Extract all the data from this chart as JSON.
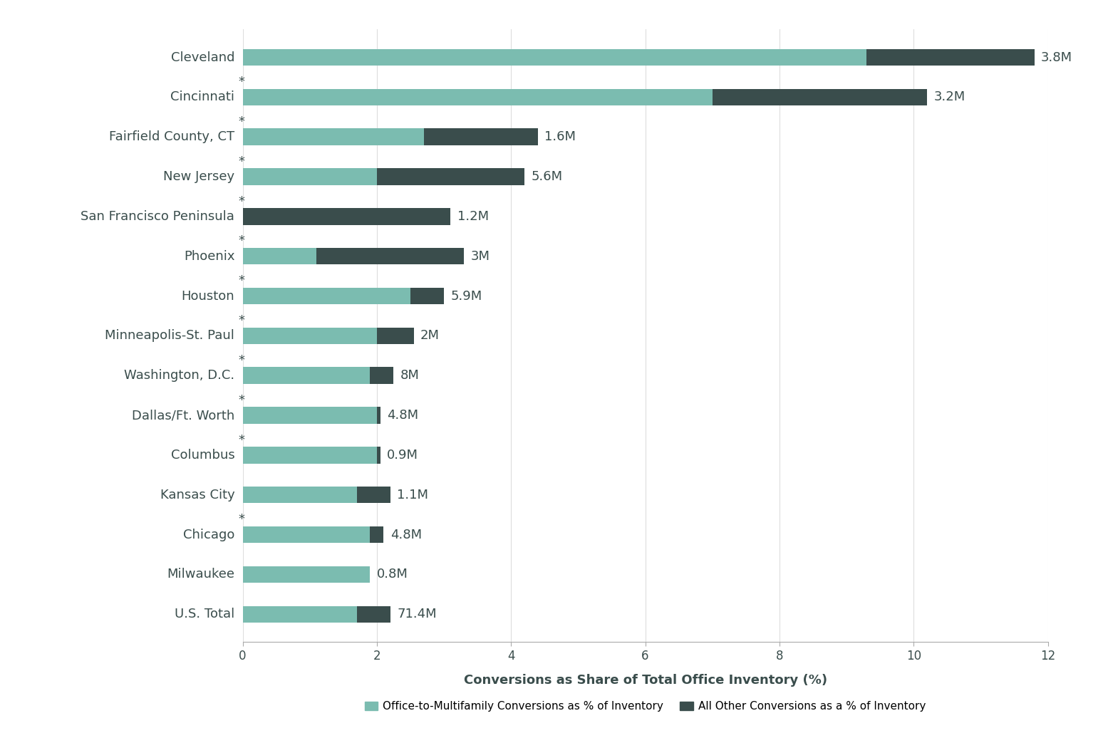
{
  "categories": [
    "U.S. Total",
    "Milwaukee",
    "Chicago",
    "Kansas City",
    "Columbus",
    "Dallas/Ft. Worth",
    "Washington, D.C.",
    "Minneapolis-St. Paul",
    "Houston",
    "Phoenix",
    "San Francisco Peninsula",
    "New Jersey",
    "Fairfield County, CT",
    "Cincinnati",
    "Cleveland"
  ],
  "has_star": [
    false,
    false,
    true,
    false,
    true,
    true,
    true,
    true,
    true,
    true,
    true,
    true,
    true,
    true,
    false
  ],
  "teal_values": [
    1.7,
    1.9,
    1.9,
    1.7,
    2.0,
    2.0,
    1.9,
    2.0,
    2.5,
    1.1,
    0.0,
    2.0,
    2.7,
    7.0,
    9.3
  ],
  "dark_values": [
    0.5,
    0.0,
    0.2,
    0.5,
    0.05,
    0.05,
    0.35,
    0.55,
    0.5,
    2.2,
    3.1,
    2.2,
    1.7,
    3.2,
    2.5
  ],
  "labels": [
    "71.4M",
    "0.8M",
    "4.8M",
    "1.1M",
    "0.9M",
    "4.8M",
    "8M",
    "2M",
    "5.9M",
    "3M",
    "1.2M",
    "5.6M",
    "1.6M",
    "3.2M",
    "3.8M"
  ],
  "teal_color": "#7BBCB0",
  "dark_color": "#3A4D4C",
  "background_color": "#FFFFFF",
  "xlabel": "Conversions as Share of Total Office Inventory (%)",
  "xlim": [
    0,
    12
  ],
  "xticks": [
    0,
    2,
    4,
    6,
    8,
    10,
    12
  ],
  "legend_teal": "Office-to-Multifamily Conversions as % of Inventory",
  "legend_dark": "All Other Conversions as a % of Inventory",
  "grid_color": "#DDDDDD",
  "label_fontsize": 13,
  "xlabel_fontsize": 13,
  "tick_fontsize": 12,
  "bar_height": 0.42,
  "text_color": "#3A4D4C"
}
